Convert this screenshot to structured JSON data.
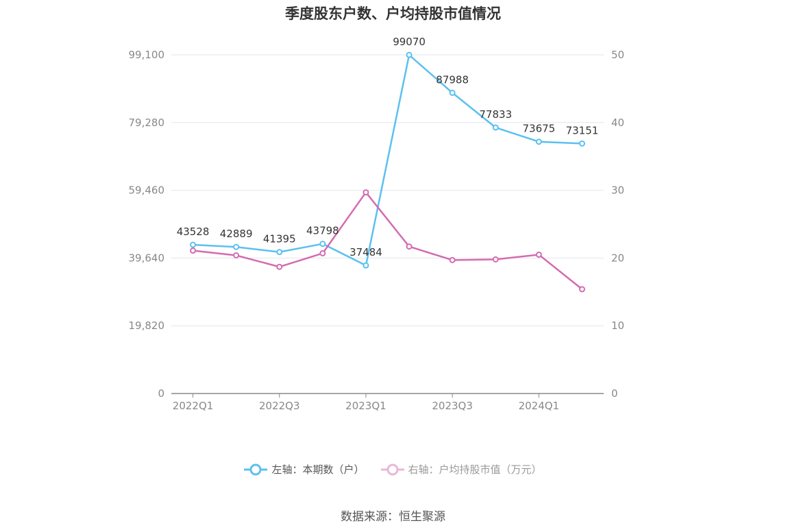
{
  "title": "季度股东户数、户均持股市值情况",
  "source": "数据来源：恒生聚源",
  "colors": {
    "left_series": "#5bc0f0",
    "right_series": "#d46bb0",
    "grid": "#e3e6ee",
    "axis": "#888888",
    "tick_text": "#888888"
  },
  "chart_data": {
    "type": "line",
    "title": "季度股东户数、户均持股市值情况",
    "x": [
      "2022Q1",
      "2022Q2",
      "2022Q3",
      "2022Q4",
      "2023Q1",
      "2023Q2",
      "2023Q3",
      "2023Q4",
      "2024Q1",
      "2024Q2"
    ],
    "x_tick_labels": [
      "2022Q1",
      "2022Q3",
      "2023Q1",
      "2023Q3",
      "2024Q1"
    ],
    "left_axis": {
      "min": 0,
      "max": 99100,
      "ticks": [
        "0",
        "19,820",
        "39,640",
        "59,460",
        "79,280",
        "99,100"
      ]
    },
    "right_axis": {
      "min": 0,
      "max": 50,
      "ticks": [
        "0",
        "10",
        "20",
        "30",
        "40",
        "50"
      ]
    },
    "grid": true,
    "legend_position": "bottom",
    "series": [
      {
        "name": "左轴：本期数（户）",
        "axis": "left",
        "values": [
          43528,
          42889,
          41395,
          43798,
          37484,
          99070,
          87988,
          77833,
          73675,
          73151
        ],
        "labels": [
          "43528",
          "42889",
          "41395",
          "43798",
          "37484",
          "99070",
          "87988",
          "77833",
          "73675",
          "73151"
        ]
      },
      {
        "name": "右轴：户均持股市值（万元）",
        "axis": "right",
        "values": [
          21.1,
          20.4,
          18.7,
          20.7,
          29.7,
          21.7,
          19.7,
          19.8,
          20.5,
          15.4
        ]
      }
    ]
  }
}
